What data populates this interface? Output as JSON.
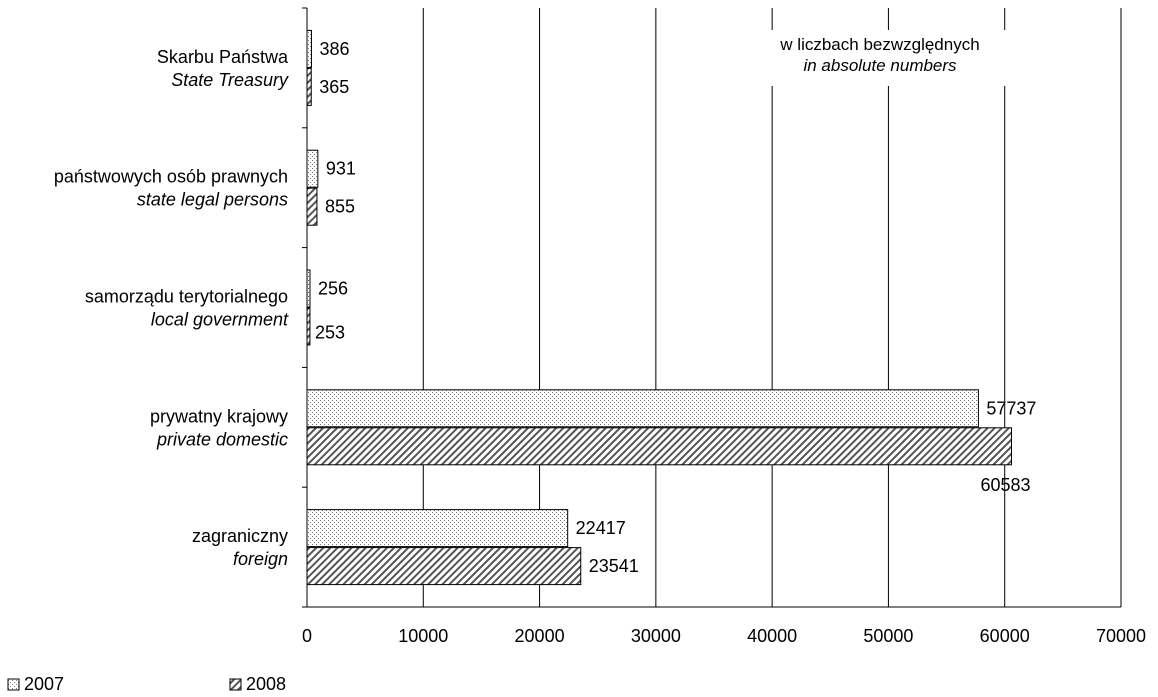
{
  "chart_data": {
    "type": "bar",
    "orientation": "horizontal",
    "categories": [
      {
        "pl": "Skarbu Państwa",
        "en": "State Treasury"
      },
      {
        "pl": "państwowych osób prawnych",
        "en": "state legal persons"
      },
      {
        "pl": "samorządu terytorialnego",
        "en": "local government"
      },
      {
        "pl": "prywatny krajowy",
        "en": "private domestic"
      },
      {
        "pl": "zagraniczny",
        "en": "foreign"
      }
    ],
    "series": [
      {
        "name": "2007",
        "pattern": "dots",
        "values": [
          386,
          931,
          256,
          57737,
          22417
        ]
      },
      {
        "name": "2008",
        "pattern": "diagonal-hatch",
        "values": [
          365,
          855,
          253,
          60583,
          23541
        ]
      }
    ],
    "xlim": [
      0,
      70000
    ],
    "xticks": [
      0,
      10000,
      20000,
      30000,
      40000,
      50000,
      60000,
      70000
    ],
    "note": {
      "pl": "w liczbach bezwzględnych",
      "en": "in absolute numbers"
    },
    "grid": "vertical",
    "legend_position": "bottom-left",
    "colors": {
      "bar_outline": "#000000",
      "pattern": "#555555",
      "grid": "#000000",
      "background": "#ffffff"
    }
  }
}
